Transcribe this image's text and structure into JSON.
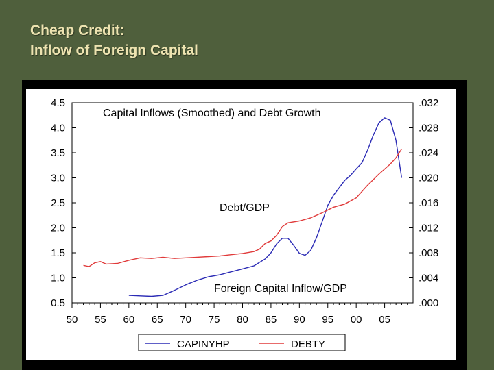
{
  "slide": {
    "title_line1": "Cheap Credit:",
    "title_line2": "Inflow of Foreign Capital"
  },
  "colors": {
    "background": "#4f5f3c",
    "title": "#ede3b0",
    "capital_series": "#2b2bb5",
    "debt_series": "#e03a3a"
  },
  "chart_data": {
    "type": "line",
    "title": "Capital Inflows (Smoothed) and Debt Growth",
    "x_ticks": [
      "50",
      "55",
      "60",
      "65",
      "70",
      "75",
      "80",
      "85",
      "90",
      "95",
      "00",
      "05"
    ],
    "x_tick_years": [
      1950,
      1955,
      1960,
      1965,
      1970,
      1975,
      1980,
      1985,
      1990,
      1995,
      2000,
      2005
    ],
    "xlim": [
      1950,
      2010
    ],
    "left_axis": {
      "ylim": [
        0.5,
        4.5
      ],
      "ticks": [
        "0.5",
        "1.0",
        "1.5",
        "2.0",
        "2.5",
        "3.0",
        "3.5",
        "4.0",
        "4.5"
      ],
      "tick_values": [
        0.5,
        1.0,
        1.5,
        2.0,
        2.5,
        3.0,
        3.5,
        4.0,
        4.5
      ]
    },
    "right_axis": {
      "ylim": [
        0.0,
        0.032
      ],
      "ticks": [
        ".000",
        ".004",
        ".008",
        ".012",
        ".016",
        ".020",
        ".024",
        ".028",
        ".032"
      ],
      "tick_values": [
        0.0,
        0.004,
        0.008,
        0.012,
        0.016,
        0.02,
        0.024,
        0.028,
        0.032
      ]
    },
    "annotations": {
      "debt": "Debt/GDP",
      "capital": "Foreign Capital Inflow/GDP"
    },
    "series": [
      {
        "name": "CAPINYHP",
        "axis": "left",
        "color": "#2b2bb5",
        "points": [
          [
            1960,
            0.65
          ],
          [
            1962,
            0.64
          ],
          [
            1964,
            0.63
          ],
          [
            1966,
            0.65
          ],
          [
            1968,
            0.75
          ],
          [
            1970,
            0.86
          ],
          [
            1972,
            0.95
          ],
          [
            1974,
            1.02
          ],
          [
            1976,
            1.06
          ],
          [
            1978,
            1.12
          ],
          [
            1980,
            1.18
          ],
          [
            1982,
            1.24
          ],
          [
            1984,
            1.38
          ],
          [
            1985,
            1.5
          ],
          [
            1986,
            1.68
          ],
          [
            1987,
            1.79
          ],
          [
            1988,
            1.79
          ],
          [
            1989,
            1.65
          ],
          [
            1990,
            1.49
          ],
          [
            1991,
            1.45
          ],
          [
            1992,
            1.55
          ],
          [
            1993,
            1.8
          ],
          [
            1994,
            2.12
          ],
          [
            1995,
            2.45
          ],
          [
            1996,
            2.65
          ],
          [
            1997,
            2.8
          ],
          [
            1998,
            2.95
          ],
          [
            1999,
            3.05
          ],
          [
            2000,
            3.18
          ],
          [
            2001,
            3.3
          ],
          [
            2002,
            3.55
          ],
          [
            2003,
            3.85
          ],
          [
            2004,
            4.1
          ],
          [
            2005,
            4.2
          ],
          [
            2006,
            4.15
          ],
          [
            2007,
            3.75
          ],
          [
            2008,
            3.0
          ]
        ]
      },
      {
        "name": "DEBTY",
        "axis": "right",
        "color": "#e03a3a",
        "points": [
          [
            1952,
            0.006
          ],
          [
            1953,
            0.0058
          ],
          [
            1954,
            0.0064
          ],
          [
            1955,
            0.0066
          ],
          [
            1956,
            0.0062
          ],
          [
            1958,
            0.0063
          ],
          [
            1960,
            0.0068
          ],
          [
            1962,
            0.0072
          ],
          [
            1964,
            0.0071
          ],
          [
            1966,
            0.0073
          ],
          [
            1968,
            0.0071
          ],
          [
            1970,
            0.0072
          ],
          [
            1972,
            0.0073
          ],
          [
            1974,
            0.0074
          ],
          [
            1976,
            0.0075
          ],
          [
            1978,
            0.0077
          ],
          [
            1980,
            0.0079
          ],
          [
            1982,
            0.0082
          ],
          [
            1983,
            0.0086
          ],
          [
            1984,
            0.0095
          ],
          [
            1985,
            0.0099
          ],
          [
            1986,
            0.0108
          ],
          [
            1987,
            0.0122
          ],
          [
            1988,
            0.0128
          ],
          [
            1990,
            0.0131
          ],
          [
            1992,
            0.0136
          ],
          [
            1994,
            0.0144
          ],
          [
            1996,
            0.0153
          ],
          [
            1998,
            0.0158
          ],
          [
            2000,
            0.0168
          ],
          [
            2002,
            0.0188
          ],
          [
            2004,
            0.0206
          ],
          [
            2006,
            0.0222
          ],
          [
            2007,
            0.0232
          ],
          [
            2008,
            0.0246
          ]
        ]
      }
    ],
    "legend": {
      "placement": "bottom",
      "items": [
        "CAPINYHP",
        "DEBTY"
      ]
    }
  }
}
